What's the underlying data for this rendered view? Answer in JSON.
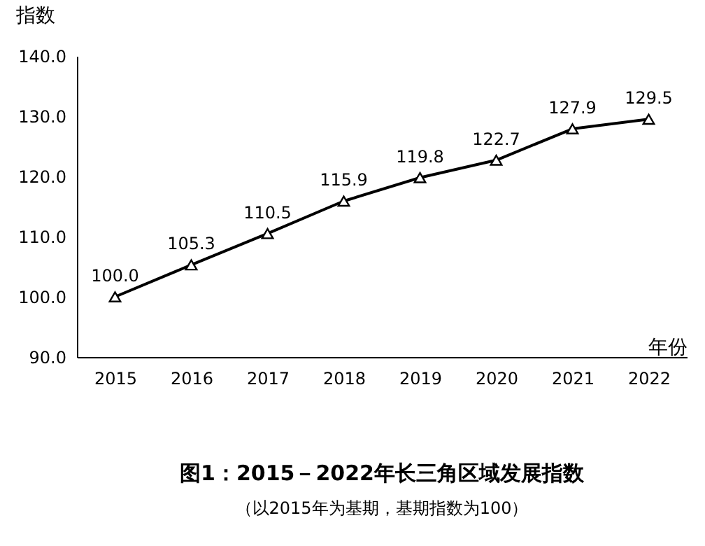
{
  "chart_data": {
    "type": "line",
    "title": "图1：2015－2022年长三角区域发展指数",
    "subtitle": "（以2015年为基期，基期指数为100）",
    "xlabel": "年份",
    "ylabel": "指数",
    "categories": [
      "2015",
      "2016",
      "2017",
      "2018",
      "2019",
      "2020",
      "2021",
      "2022"
    ],
    "series": [
      {
        "color": "#000000",
        "values": [
          100.0,
          105.3,
          110.5,
          115.9,
          119.8,
          122.7,
          127.9,
          129.5
        ],
        "value_labels": [
          "100.0",
          "105.3",
          "110.5",
          "115.9",
          "119.8",
          "122.7",
          "127.9",
          "129.5"
        ]
      }
    ],
    "ylim": [
      90,
      140
    ],
    "yticks": [
      {
        "value": 90,
        "label": "90.0"
      },
      {
        "value": 100,
        "label": "100.0"
      },
      {
        "value": 110,
        "label": "110.0"
      },
      {
        "value": 120,
        "label": "120.0"
      },
      {
        "value": 130,
        "label": "130.0"
      },
      {
        "value": 140,
        "label": "140.0"
      }
    ],
    "marker": "triangle",
    "line_style": "solid",
    "grid": false,
    "legend": false
  }
}
